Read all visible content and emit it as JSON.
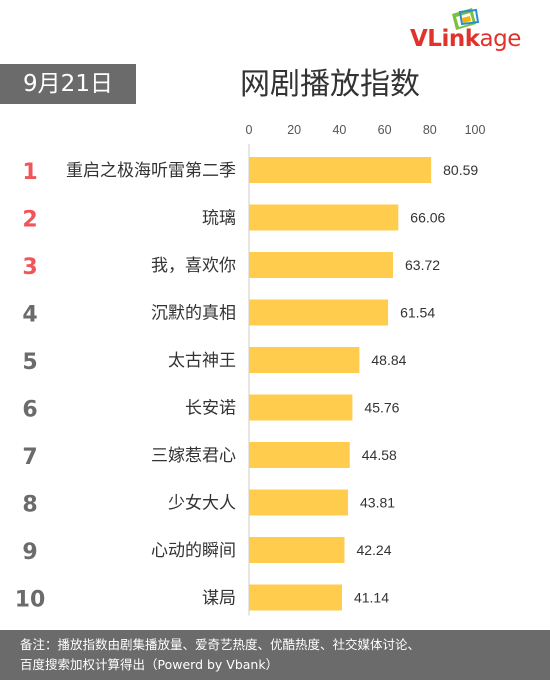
{
  "logo": {
    "text_vl": "VLink",
    "text_rest": "age"
  },
  "date": "9月21日",
  "title": "网剧播放指数",
  "footer": {
    "line1": "备注：播放指数由剧集播放量、爱奇艺热度、优酷热度、社交媒体讨论、",
    "line2": "百度搜索加权计算得出（Powerd by Vbank）"
  },
  "colors": {
    "bar": "#FFCC4D",
    "rank_top": "#F0555A",
    "rank_other": "#6B6B6B",
    "header_bg": "#6B6B6B"
  },
  "chart_data": {
    "type": "bar",
    "orientation": "horizontal",
    "axis_ticks": [
      0,
      20,
      40,
      60,
      80,
      100
    ],
    "xlim": [
      0,
      100
    ],
    "ranks": [
      "1",
      "2",
      "3",
      "4",
      "5",
      "6",
      "7",
      "8",
      "9",
      "10"
    ],
    "categories": [
      "重启之极海听雷第二季",
      "琉璃",
      "我，喜欢你",
      "沉默的真相",
      "太古神王",
      "长安诺",
      "三嫁惹君心",
      "少女大人",
      "心动的瞬间",
      "谋局"
    ],
    "values": [
      80.59,
      66.06,
      63.72,
      61.54,
      48.84,
      45.76,
      44.58,
      43.81,
      42.24,
      41.14
    ],
    "value_labels": [
      "80.59",
      "66.06",
      "63.72",
      "61.54",
      "48.84",
      "45.76",
      "44.58",
      "43.81",
      "42.24",
      "41.14"
    ]
  }
}
